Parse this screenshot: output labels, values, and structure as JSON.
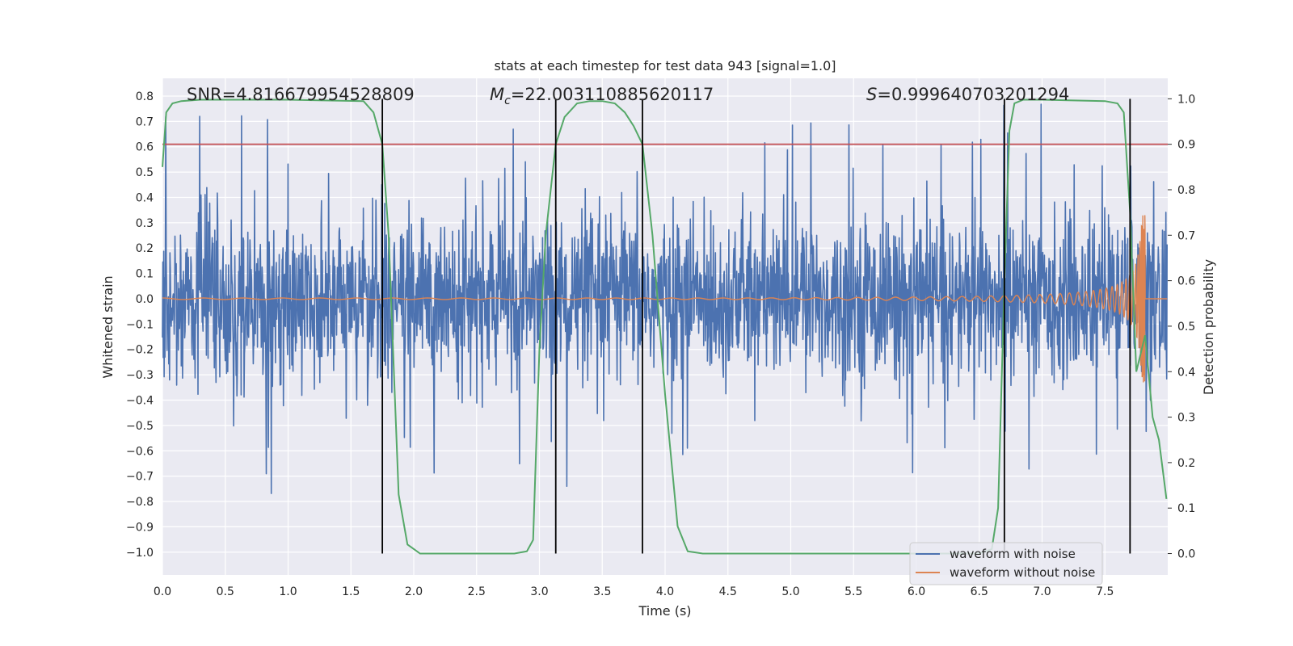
{
  "chart_data": {
    "type": "line",
    "title": "stats at each timestep for test data 943 [signal=1.0]",
    "xlabel": "Time (s)",
    "ylabel": "Whitened strain",
    "ylabel_right": "Detection probability",
    "xlim": [
      0.0,
      8.0
    ],
    "ylim": [
      -1.09,
      0.87
    ],
    "ylim_right": [
      -0.047,
      1.045
    ],
    "xticks": [
      "0.0",
      "0.5",
      "1.0",
      "1.5",
      "2.0",
      "2.5",
      "3.0",
      "3.5",
      "4.0",
      "4.5",
      "5.0",
      "5.5",
      "6.0",
      "6.5",
      "7.0",
      "7.5"
    ],
    "yticks": [
      "0.8",
      "0.7",
      "0.6",
      "0.5",
      "0.4",
      "0.3",
      "0.2",
      "0.1",
      "0.0",
      "−0.1",
      "−0.2",
      "−0.3",
      "−0.4",
      "−0.5",
      "−0.6",
      "−0.7",
      "−0.8",
      "−0.9",
      "−1.0"
    ],
    "yticks_right": [
      "1.0",
      "0.9",
      "0.8",
      "0.7",
      "0.6",
      "0.5",
      "0.4",
      "0.3",
      "0.2",
      "0.1",
      "0.0"
    ],
    "grid": true,
    "legend_placement": "lower right",
    "annotations": {
      "snr": "SNR=4.816679954528809",
      "mc_symbol": "M",
      "mc_sub": "c",
      "mc_value": "=22.003110885620117",
      "s_symbol": "S",
      "s_value": "=0.999640703201294"
    },
    "threshold": 0.9,
    "threshold_color": "#c44e52",
    "vertical_lines_x": [
      1.75,
      3.13,
      3.82,
      6.7,
      7.7
    ],
    "series": [
      {
        "name": "waveform with noise",
        "color": "#4c72b0",
        "axis": "left",
        "envelope": "noise band roughly ±0.3 with spikes up to 0.8 and down to −0.8"
      },
      {
        "name": "waveform without noise",
        "color": "#dd8452",
        "axis": "left",
        "envelope": "chirp amplitude 0.003 at t=0 rising to about 0.3 at t≈7.8",
        "chirp_end_x": 7.82
      },
      {
        "color": "#55a868",
        "axis": "right",
        "x": [
          0.0,
          0.03,
          0.08,
          0.15,
          0.3,
          1.0,
          1.6,
          1.68,
          1.75,
          1.8,
          1.88,
          1.95,
          2.05,
          2.2,
          2.8,
          2.9,
          2.95,
          3.0,
          3.05,
          3.13,
          3.2,
          3.3,
          3.4,
          3.5,
          3.6,
          3.68,
          3.75,
          3.82,
          3.9,
          4.0,
          4.1,
          4.18,
          4.3,
          6.5,
          6.6,
          6.65,
          6.7,
          6.74,
          6.78,
          6.85,
          7.0,
          7.5,
          7.6,
          7.65,
          7.7,
          7.75,
          7.82,
          7.88,
          7.93,
          7.99
        ],
        "values": [
          0.85,
          0.97,
          0.99,
          0.995,
          0.998,
          0.998,
          0.995,
          0.97,
          0.9,
          0.7,
          0.13,
          0.02,
          0.0,
          0.0,
          0.0,
          0.005,
          0.03,
          0.45,
          0.7,
          0.9,
          0.96,
          0.99,
          0.995,
          0.995,
          0.99,
          0.97,
          0.94,
          0.9,
          0.7,
          0.35,
          0.06,
          0.005,
          0.0,
          0.0,
          0.01,
          0.1,
          0.6,
          0.93,
          0.99,
          0.998,
          0.998,
          0.995,
          0.99,
          0.97,
          0.75,
          0.4,
          0.48,
          0.3,
          0.25,
          0.12
        ]
      }
    ]
  }
}
